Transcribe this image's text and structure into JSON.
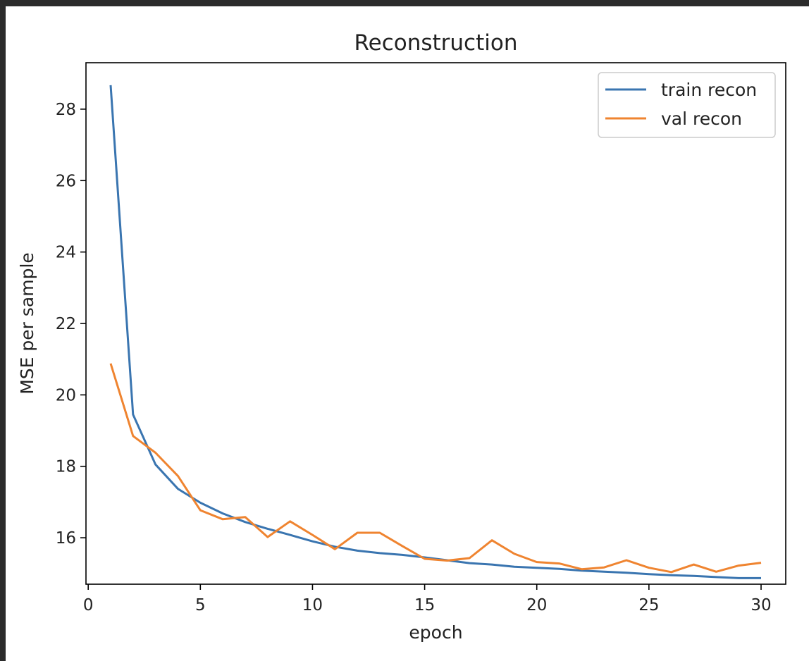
{
  "chart_data": {
    "type": "line",
    "title": "Reconstruction",
    "xlabel": "epoch",
    "ylabel": "MSE per sample",
    "xlim": [
      -0.1,
      31.1
    ],
    "ylim": [
      14.7,
      29.3
    ],
    "xticks": [
      0,
      5,
      10,
      15,
      20,
      25,
      30
    ],
    "yticks": [
      16,
      18,
      20,
      22,
      24,
      26,
      28
    ],
    "grid": false,
    "legend_position": "top-right",
    "x": [
      1,
      2,
      3,
      4,
      5,
      6,
      7,
      8,
      9,
      10,
      11,
      12,
      13,
      14,
      15,
      16,
      17,
      18,
      19,
      20,
      21,
      22,
      23,
      24,
      25,
      26,
      27,
      28,
      29,
      30
    ],
    "series": [
      {
        "name": "train recon",
        "color": "#3a75b0",
        "values": [
          28.67,
          19.45,
          18.05,
          17.37,
          16.98,
          16.68,
          16.44,
          16.25,
          16.08,
          15.9,
          15.75,
          15.64,
          15.57,
          15.52,
          15.45,
          15.37,
          15.29,
          15.25,
          15.19,
          15.16,
          15.13,
          15.08,
          15.05,
          15.02,
          14.98,
          14.95,
          14.93,
          14.9,
          14.87,
          14.87
        ]
      },
      {
        "name": "val recon",
        "color": "#ef8430",
        "values": [
          20.88,
          18.85,
          18.38,
          17.73,
          16.77,
          16.52,
          16.58,
          16.02,
          16.46,
          16.08,
          15.68,
          16.14,
          16.14,
          15.77,
          15.41,
          15.36,
          15.43,
          15.93,
          15.55,
          15.32,
          15.28,
          15.12,
          15.17,
          15.37,
          15.16,
          15.04,
          15.25,
          15.05,
          15.22,
          15.3
        ]
      }
    ]
  }
}
